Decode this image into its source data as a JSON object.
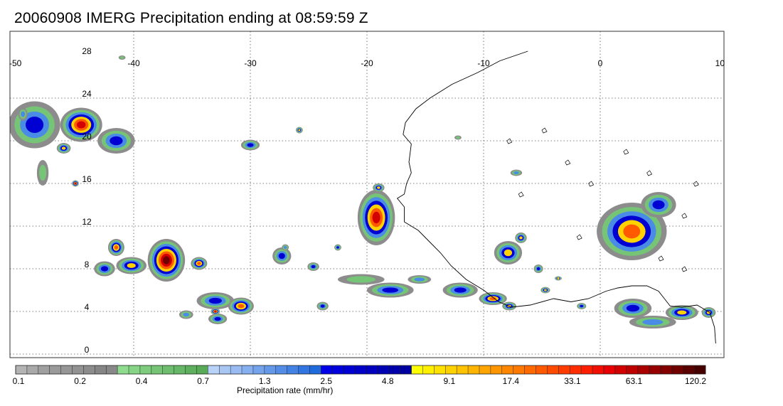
{
  "title": "20060908 IMERG Precipitation ending at 08:59:59 Z",
  "map": {
    "lon_range": [
      -50,
      10
    ],
    "lat_range": [
      -1,
      30
    ],
    "lon_ticks": [
      "-50",
      "-40",
      "-30",
      "-20",
      "-10",
      "0",
      "10"
    ],
    "lat_ticks": [
      "28",
      "24",
      "20",
      "16",
      "12",
      "8",
      "4",
      "0"
    ],
    "grid": "dotted"
  },
  "colorbar": {
    "title": "Precipitation rate (mm/hr)",
    "tick_labels": [
      "0.1",
      "0.2",
      "0.4",
      "0.7",
      "1.3",
      "2.5",
      "4.8",
      "9.1",
      "17.4",
      "33.1",
      "63.1",
      "120.2"
    ],
    "colors": [
      "#b4b4b4",
      "#a9a9a9",
      "#a0a0a0",
      "#9a9a9a",
      "#969696",
      "#929292",
      "#8c8c8c",
      "#868686",
      "#888888",
      "#8fdc8f",
      "#86d486",
      "#7ecd7e",
      "#76c576",
      "#6ebe6e",
      "#66b766",
      "#5eb05e",
      "#58aa58",
      "#b9d2f7",
      "#a8c6f4",
      "#97bbf2",
      "#86b0ef",
      "#74a4ec",
      "#6499e9",
      "#538de6",
      "#4282e3",
      "#3176e0",
      "#206bdc",
      "#0000e6",
      "#0000dc",
      "#0000d2",
      "#0000c8",
      "#0000be",
      "#0000b4",
      "#0000aa",
      "#0000a0",
      "#ffff00",
      "#fff000",
      "#ffe100",
      "#ffd200",
      "#ffc300",
      "#ffb400",
      "#ffa500",
      "#ff9600",
      "#ff8700",
      "#ff7800",
      "#ff6900",
      "#ff5a00",
      "#ff4b00",
      "#ff3c00",
      "#ff2d00",
      "#ff1e00",
      "#f00f00",
      "#e60000",
      "#d20000",
      "#be0000",
      "#aa0000",
      "#960000",
      "#820000",
      "#6e0000",
      "#5a0000",
      "#460000"
    ]
  }
}
